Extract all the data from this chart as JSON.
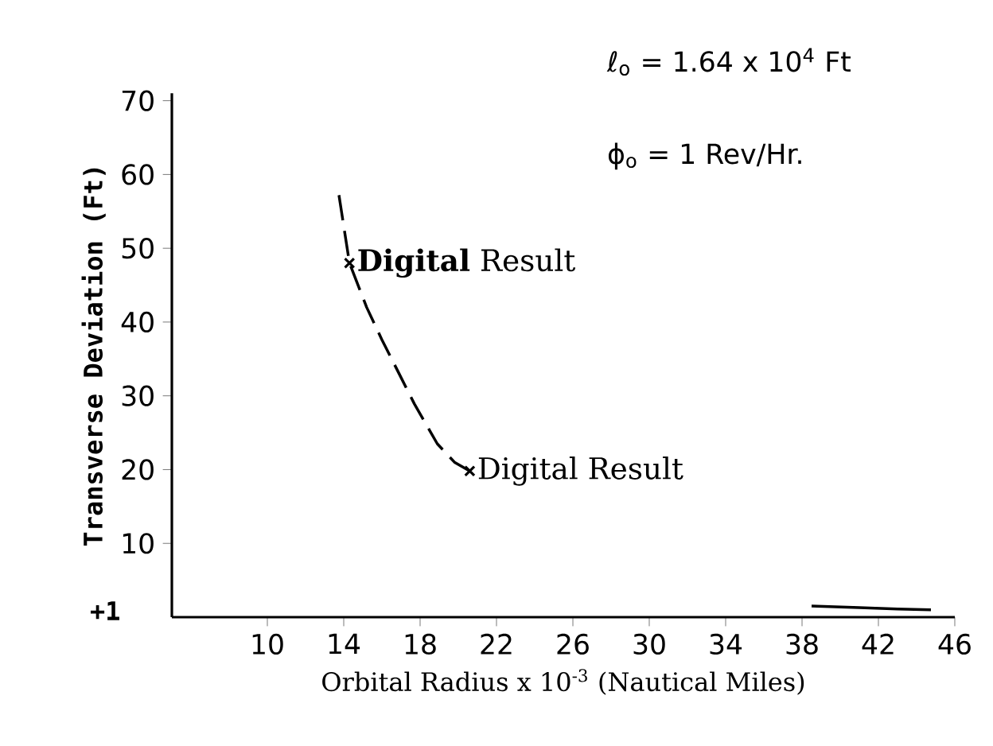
{
  "chart_data": {
    "type": "line",
    "xlabel": "Orbital Radius x 10$^{-3}$ (Nautical Miles)",
    "ylabel": "Transverse Deviation (Ft)",
    "xlim": [
      5,
      46
    ],
    "ylim": [
      0,
      71
    ],
    "xticks": [
      10,
      14,
      18,
      22,
      26,
      30,
      34,
      38,
      42,
      46
    ],
    "yticks": [
      10,
      20,
      30,
      40,
      50,
      60,
      70
    ],
    "grid": false,
    "series": [
      {
        "color": "#000000",
        "line_style": "dashed",
        "x": [
          13.75,
          14.3,
          15.2,
          16.0,
          16.9,
          17.7,
          18.9,
          19.8,
          20.6
        ],
        "values": [
          57.2,
          48.0,
          42.0,
          37.6,
          33.0,
          28.9,
          23.5,
          21.0,
          19.8
        ]
      },
      {
        "type": "line",
        "color": "#000000",
        "line_style": "solid",
        "x": [
          38.5,
          41.0,
          43.0,
          44.75
        ],
        "values": [
          1.5,
          1.3,
          1.1,
          1.0
        ]
      },
      {
        "type": "scatter",
        "color": "#000000",
        "marker": "cross",
        "x": [
          14.3,
          20.6
        ],
        "values": [
          48.0,
          19.8
        ]
      }
    ],
    "annotations": [
      {
        "text": "**Digital** Result",
        "x": 14.3,
        "y": 48.0
      },
      {
        "text": "Digital Result",
        "x": 20.6,
        "y": 19.8
      },
      "ℓ$_{o}$ = 1.64 x 10$^{4}$ Ft",
      "ϕ$_{o}$ = 1 Rev/Hr.",
      "+1"
    ]
  }
}
